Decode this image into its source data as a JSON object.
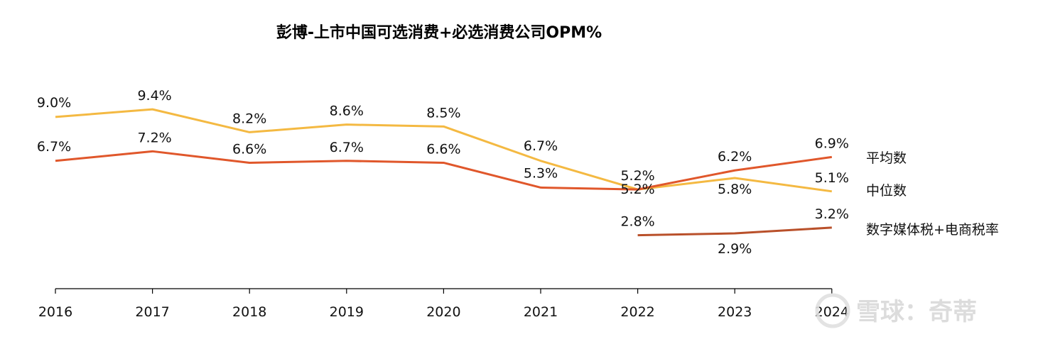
{
  "chart_data": {
    "type": "line",
    "title": "彭博-上市中国可选消费+必选消费公司OPM%",
    "xlabel": "",
    "ylabel": "",
    "categories": [
      "2016",
      "2017",
      "2018",
      "2019",
      "2020",
      "2021",
      "2022",
      "2023",
      "2024"
    ],
    "ylim": [
      0,
      15
    ],
    "grid": false,
    "legend_position": "right",
    "series": [
      {
        "name": "中位数",
        "color": "#F4B942",
        "values": [
          9.0,
          9.4,
          8.2,
          8.6,
          8.5,
          6.7,
          5.2,
          5.8,
          5.1
        ],
        "labels": [
          "9.0%",
          "9.4%",
          "8.2%",
          "8.6%",
          "8.5%",
          "6.7%",
          "5.2%",
          "5.8%",
          "5.1%"
        ]
      },
      {
        "name": "平均数",
        "color": "#E0572B",
        "values": [
          6.7,
          7.2,
          6.6,
          6.7,
          6.6,
          5.3,
          5.2,
          6.2,
          6.9
        ],
        "labels": [
          "6.7%",
          "7.2%",
          "6.6%",
          "6.7%",
          "6.6%",
          "5.3%",
          "5.2%",
          "6.2%",
          "6.9%"
        ]
      },
      {
        "name": "数字媒体税+电商税率",
        "color": "#B9502A",
        "values": [
          null,
          null,
          null,
          null,
          null,
          null,
          2.8,
          2.9,
          3.2
        ],
        "labels": [
          null,
          null,
          null,
          null,
          null,
          null,
          "2.8%",
          "2.9%",
          "3.2%"
        ]
      }
    ]
  },
  "watermark": "雪球：奇蒂"
}
